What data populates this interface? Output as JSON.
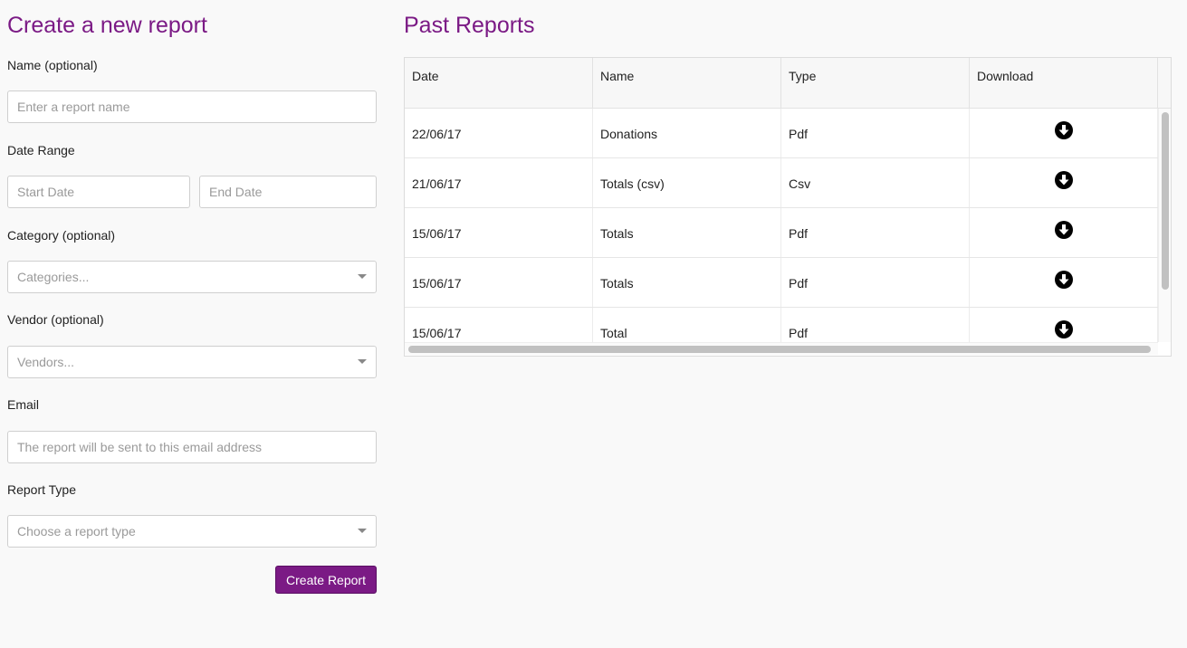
{
  "form": {
    "title": "Create a new report",
    "name_label": "Name (optional)",
    "name_placeholder": "Enter a report name",
    "date_range_label": "Date Range",
    "start_date_placeholder": "Start Date",
    "end_date_placeholder": "End Date",
    "category_label": "Category (optional)",
    "category_placeholder": "Categories...",
    "vendor_label": "Vendor (optional)",
    "vendor_placeholder": "Vendors...",
    "email_label": "Email",
    "email_placeholder": "The report will be sent to this email address",
    "report_type_label": "Report Type",
    "report_type_placeholder": "Choose a report type",
    "create_button_label": "Create Report"
  },
  "past_reports": {
    "title": "Past Reports",
    "columns": [
      "Date",
      "Name",
      "Type",
      "Download"
    ],
    "rows": [
      {
        "date": "22/06/17",
        "name": "Donations",
        "type": "Pdf"
      },
      {
        "date": "21/06/17",
        "name": "Totals (csv)",
        "type": "Csv"
      },
      {
        "date": "15/06/17",
        "name": "Totals",
        "type": "Pdf"
      },
      {
        "date": "15/06/17",
        "name": "Totals",
        "type": "Pdf"
      },
      {
        "date": "15/06/17",
        "name": "Total",
        "type": "Pdf"
      }
    ]
  },
  "icons": {
    "download": "download-circle-icon",
    "select_arrow": "caret-down-icon"
  },
  "colors": {
    "accent": "#7b1a85"
  }
}
